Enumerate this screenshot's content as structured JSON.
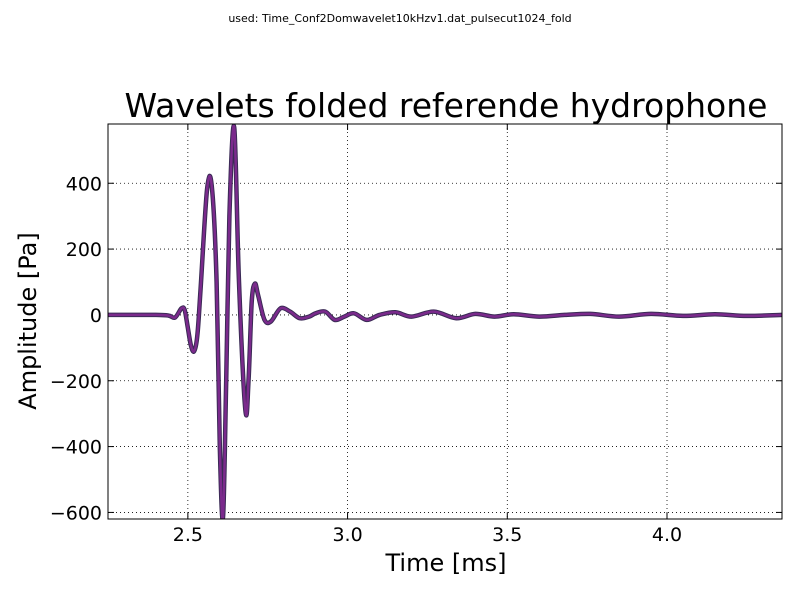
{
  "header": {
    "caption": "used: Time_Conf2Domwavelet10kHzv1.dat_pulsecut1024_fold"
  },
  "chart_data": {
    "type": "line",
    "title": "Wavelets folded referende hydrophone",
    "xlabel": "Time [ms]",
    "ylabel": "Amplitude [Pa]",
    "xlim": [
      2.25,
      4.36
    ],
    "ylim": [
      -620,
      580
    ],
    "xticks": [
      2.5,
      3.0,
      3.5,
      4.0
    ],
    "xtick_labels": [
      "2.5",
      "3.0",
      "3.5",
      "4.0"
    ],
    "yticks": [
      400,
      200,
      0,
      -200,
      -400,
      -600
    ],
    "ytick_labels": [
      "400",
      "200",
      "0",
      "−200",
      "−400",
      "−600"
    ],
    "grid": true,
    "line_color": "#7b2a8c",
    "line_color_dark": "#3a2a55",
    "series": [
      {
        "x": [
          2.25,
          2.4,
          2.44,
          2.46,
          2.48,
          2.49,
          2.5,
          2.51,
          2.52,
          2.53,
          2.54,
          2.56,
          2.575,
          2.59,
          2.6,
          2.61,
          2.62,
          2.63,
          2.645,
          2.66,
          2.68,
          2.69,
          2.7,
          2.71,
          2.72,
          2.74,
          2.76,
          2.79,
          2.82,
          2.85,
          2.88,
          2.9,
          2.93,
          2.96,
          2.99,
          3.02,
          3.06,
          3.1,
          3.15,
          3.2,
          3.27,
          3.34,
          3.4,
          3.46,
          3.52,
          3.6,
          3.68,
          3.76,
          3.85,
          3.95,
          4.05,
          4.15,
          4.25,
          4.36
        ],
        "y": [
          0,
          0,
          -2,
          -8,
          20,
          15,
          -40,
          -95,
          -110,
          -60,
          80,
          380,
          390,
          100,
          -400,
          -615,
          -200,
          300,
          570,
          100,
          -290,
          -200,
          40,
          95,
          60,
          -15,
          -20,
          20,
          10,
          -10,
          -5,
          5,
          10,
          -15,
          -5,
          5,
          -15,
          0,
          8,
          -5,
          10,
          -10,
          3,
          -5,
          2,
          -5,
          0,
          3,
          -5,
          3,
          -3,
          2,
          -3,
          0
        ]
      }
    ]
  }
}
